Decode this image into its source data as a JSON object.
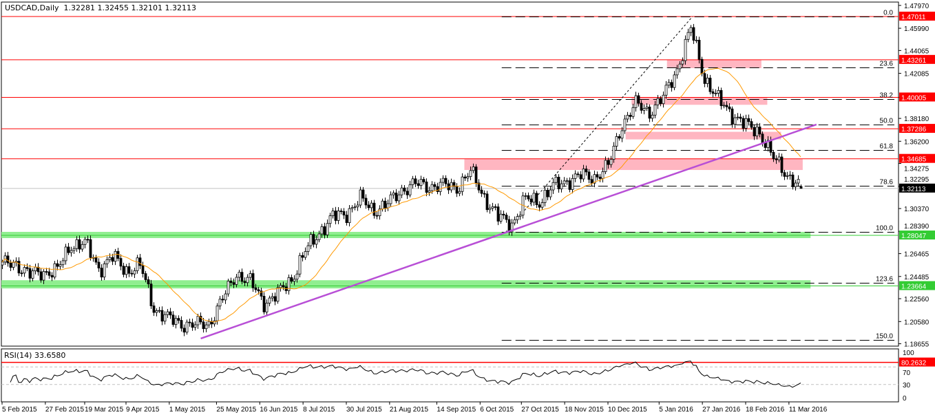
{
  "header": {
    "symbol": "USDCAD,Daily",
    "ohlc": "1.32281 1.32455 1.32101 1.32113"
  },
  "chart_data": {
    "type": "candlestick",
    "symbol": "USDCAD",
    "timeframe": "Daily",
    "ylim": [
      1.1845,
      1.4826
    ],
    "grid": false,
    "colors": {
      "resistance": "#ff0000",
      "support": "#33cc33",
      "zone_red": "#ffb6c1",
      "zone_green": "#90ee90",
      "trendline": "#b84fd6",
      "ma": "#ff9900",
      "current": "#000000"
    },
    "y_ticks": [
      "1.47970",
      "1.45990",
      "1.44065",
      "1.42085",
      "1.40005",
      "1.38180",
      "1.36200",
      "1.34275",
      "1.32295",
      "1.30370",
      "1.28390",
      "1.26465",
      "1.24485",
      "1.22560",
      "1.20580",
      "1.18655"
    ],
    "x_ticks": [
      {
        "label": "5 Feb 2015",
        "date": "2015-02-05"
      },
      {
        "label": "27 Feb 2015",
        "date": "2015-02-27"
      },
      {
        "label": "19 Mar 2015",
        "date": "2015-03-19"
      },
      {
        "label": "9 Apr 2015",
        "date": "2015-04-09"
      },
      {
        "label": "1 May 2015",
        "date": "2015-05-01"
      },
      {
        "label": "25 May 2015",
        "date": "2015-05-25"
      },
      {
        "label": "16 Jun 2015",
        "date": "2015-06-16"
      },
      {
        "label": "8 Jul 2015",
        "date": "2015-07-08"
      },
      {
        "label": "30 Jul 2015",
        "date": "2015-07-30"
      },
      {
        "label": "21 Aug 2015",
        "date": "2015-08-21"
      },
      {
        "label": "14 Sep 2015",
        "date": "2015-09-14"
      },
      {
        "label": "6 Oct 2015",
        "date": "2015-10-06"
      },
      {
        "label": "27 Oct 2015",
        "date": "2015-10-27"
      },
      {
        "label": "18 Nov 2015",
        "date": "2015-11-18"
      },
      {
        "label": "10 Dec 2015",
        "date": "2015-12-10"
      },
      {
        "label": "5 Jan 2016",
        "date": "2016-01-05"
      },
      {
        "label": "27 Jan 2016",
        "date": "2016-01-27"
      },
      {
        "label": "18 Feb 2016",
        "date": "2016-02-18"
      },
      {
        "label": "11 Mar 2016",
        "date": "2016-03-11"
      }
    ],
    "weekly_closes": [
      1.2548,
      1.2566,
      1.2459,
      1.2489,
      1.2501,
      1.2727,
      1.2733,
      1.2519,
      1.2614,
      1.2501,
      1.2542,
      1.2179,
      1.2083,
      1.2042,
      1.2024,
      1.2042,
      1.225,
      1.2477,
      1.2399,
      1.2226,
      1.2292,
      1.2429,
      1.2662,
      1.2835,
      1.296,
      1.3001,
      1.3115,
      1.3025,
      1.3073,
      1.3204,
      1.3246,
      1.3234,
      1.3234,
      1.3222,
      1.3353,
      1.3139,
      1.296,
      1.2906,
      1.3115,
      1.3103,
      1.3222,
      1.3282,
      1.3318,
      1.3312,
      1.3401,
      1.3771,
      1.3938,
      1.3878,
      1.3997,
      1.4248,
      1.4594,
      1.417,
      1.3974,
      1.386,
      1.3753,
      1.3705,
      1.3467,
      1.3336,
      1.32113
    ],
    "last_bar": {
      "open": 1.32281,
      "high": 1.32455,
      "low": 1.32101,
      "close": 1.32113
    },
    "current_price": {
      "value": 1.32113,
      "label": "1.32113"
    },
    "levels": [
      {
        "price": 1.47011,
        "label": "1.47011",
        "kind": "resistance"
      },
      {
        "price": 1.43261,
        "label": "1.43261",
        "kind": "resistance"
      },
      {
        "price": 1.40005,
        "label": "1.40005",
        "kind": "resistance"
      },
      {
        "price": 1.37286,
        "label": "1.37286",
        "kind": "resistance"
      },
      {
        "price": 1.34685,
        "label": "1.34685",
        "kind": "resistance"
      },
      {
        "price": 1.28047,
        "label": "1.28047",
        "kind": "support"
      },
      {
        "price": 1.23664,
        "label": "1.23664",
        "kind": "support"
      }
    ],
    "zones": [
      {
        "from": "2016-01-09",
        "to": "2016-02-26",
        "low": 1.4254,
        "high": 1.4325,
        "kind": "resistance"
      },
      {
        "from": "2015-12-22",
        "to": "2016-02-29",
        "low": 1.3936,
        "high": 1.4001,
        "kind": "resistance"
      },
      {
        "from": "2015-12-19",
        "to": "2016-03-07",
        "low": 1.3636,
        "high": 1.3702,
        "kind": "resistance"
      },
      {
        "from": "2015-09-28",
        "to": "2016-03-18",
        "low": 1.3371,
        "high": 1.3468,
        "kind": "resistance"
      },
      {
        "from": "2015-02-01",
        "to": "2016-03-22",
        "low": 1.2781,
        "high": 1.2835,
        "kind": "support"
      },
      {
        "from": "2015-02-01",
        "to": "2016-03-22",
        "low": 1.2345,
        "high": 1.2416,
        "kind": "support"
      }
    ],
    "fibonacci": {
      "high": 1.47011,
      "low": 1.2832,
      "from": "2015-10-17",
      "swing_low_date": "2015-10-19",
      "swing_high_date": "2016-01-22",
      "levels": [
        {
          "ratio": 0,
          "label": "0.0"
        },
        {
          "ratio": 0.236,
          "label": "23.6"
        },
        {
          "ratio": 0.382,
          "label": "38.2"
        },
        {
          "ratio": 0.5,
          "label": "50.0"
        },
        {
          "ratio": 0.618,
          "label": "61.8"
        },
        {
          "ratio": 0.786,
          "label": "78.6"
        },
        {
          "ratio": 1.0,
          "label": "100.0"
        },
        {
          "ratio": 1.236,
          "label": "123.6"
        },
        {
          "ratio": 1.5,
          "label": "150.0"
        }
      ]
    },
    "trendline": {
      "start": {
        "date": "2015-05-17",
        "price": 1.1911
      },
      "end": {
        "date": "2016-03-25",
        "price": 1.3765
      }
    },
    "rsi": {
      "label": "RSI(14) 33.6580",
      "period": 14,
      "value": 33.658,
      "levels": [
        70,
        30
      ],
      "marker": {
        "value": 80.2632,
        "label": "80.2632"
      },
      "ticks": [
        "100",
        "70",
        "30",
        "0"
      ]
    }
  }
}
